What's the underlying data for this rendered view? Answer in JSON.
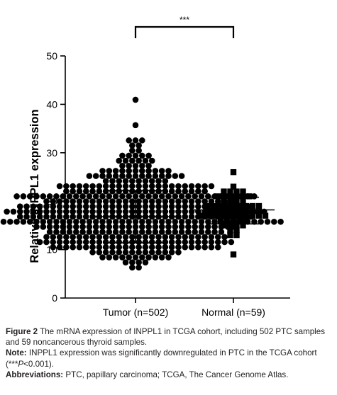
{
  "chart_data": {
    "type": "scatter",
    "title": "",
    "ylabel": "Relative INPPL1 expression",
    "xlabel": "",
    "ylim": [
      0,
      50
    ],
    "yticks": [
      0,
      10,
      20,
      30,
      40,
      50
    ],
    "grid": false,
    "legend": "none",
    "categories": [
      "Tumor (n=502)",
      "Normal (n=59)"
    ],
    "series": [
      {
        "marker": "circle",
        "n": 502,
        "mean": 16.8,
        "sd_lower": 11.4,
        "sd_upper": 22.2,
        "range": [
          6.5,
          41.2
        ],
        "outliers": [
          41.2,
          35.3,
          33.0,
          32.6,
          32.3,
          30.8,
          29.2,
          29.0,
          28.6,
          28.2,
          27.2,
          26.8,
          26.3,
          6.5,
          6.7,
          7.0,
          7.4,
          7.8,
          8.1
        ]
      },
      {
        "marker": "square",
        "n": 59,
        "mean": 18.2,
        "sd_lower": 15.3,
        "sd_upper": 20.8,
        "range": [
          8.8,
          26.0
        ],
        "outliers": [
          26.0,
          8.8
        ]
      }
    ],
    "significance": "***",
    "color": "#000000"
  },
  "caption": {
    "figure_label": "Figure 2",
    "figure_text": " The mRNA expression of INPPL1 in TCGA cohort, including 502 PTC samples and 59 noncancerous thyroid samples.",
    "note_label": "Note:",
    "note_text_1": " INPPL1 expression was significantly downregulated in PTC in the TCGA cohort (***",
    "note_p": "P",
    "note_text_2": "<0.001).",
    "abbr_label": "Abbreviations:",
    "abbr_text": " PTC, papillary carcinoma; TCGA, The Cancer Genome Atlas."
  }
}
